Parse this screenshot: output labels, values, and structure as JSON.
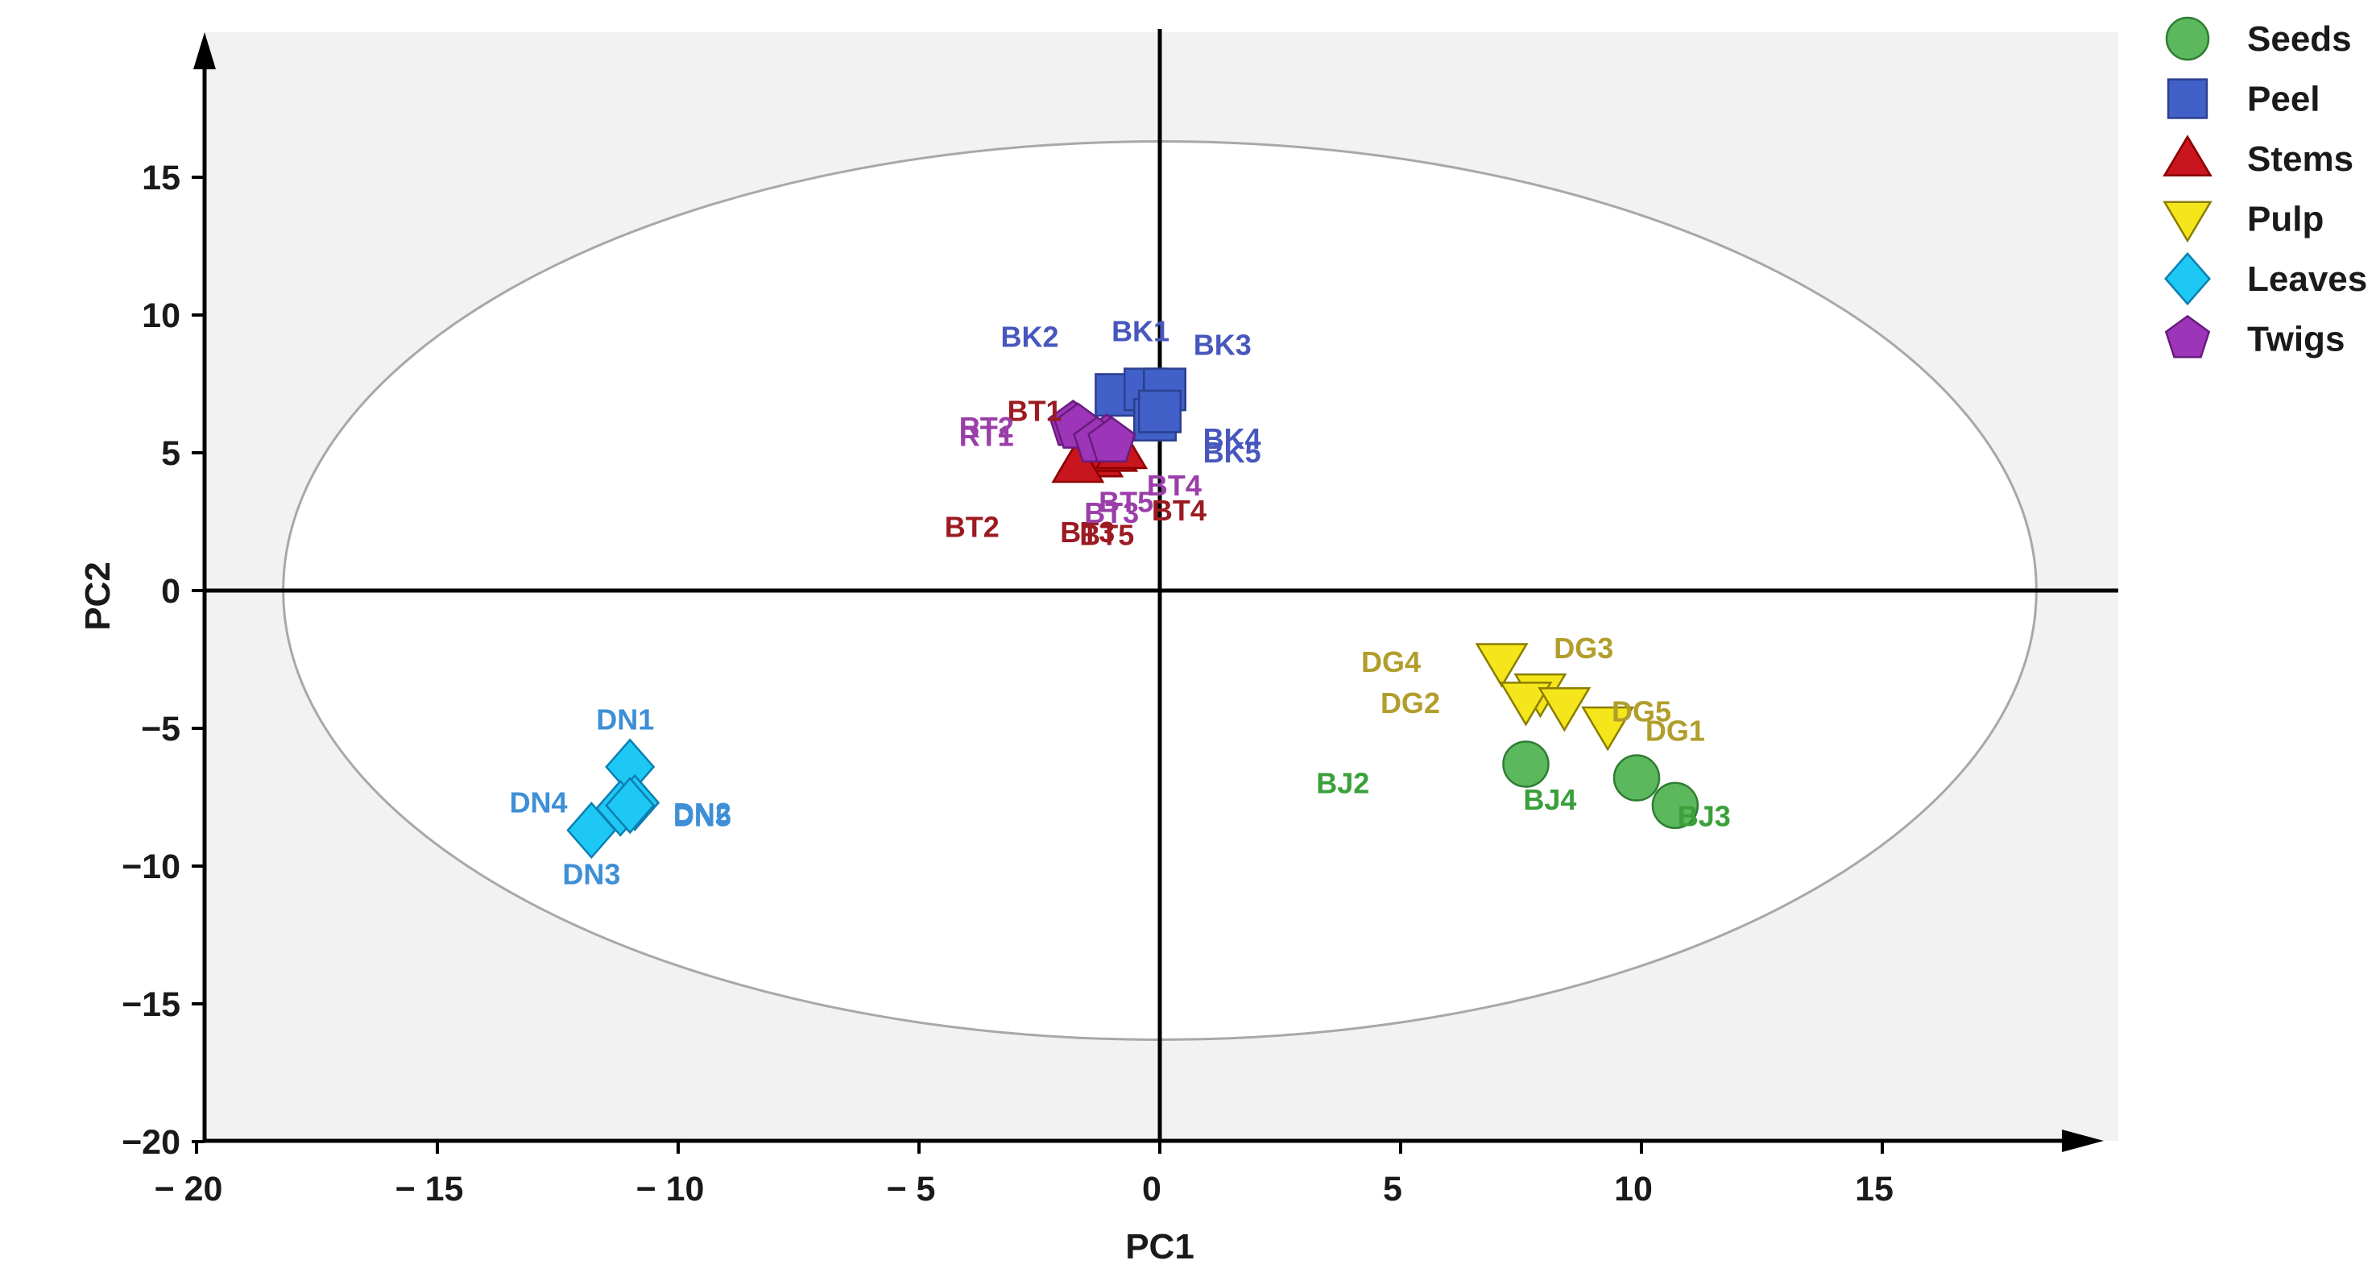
{
  "chart_data": {
    "type": "scatter",
    "title": "",
    "xlabel": "PC1",
    "ylabel": "PC2",
    "xlim": [
      -20,
      20
    ],
    "ylim": [
      -20,
      20
    ],
    "xticks": [
      -20,
      -15,
      -10,
      -5,
      0,
      5,
      10,
      15
    ],
    "yticks": [
      -20,
      -15,
      -10,
      -5,
      0,
      5,
      10,
      15
    ],
    "xtick_labels": [
      "− 20",
      "− 15",
      "− 10",
      "− 5",
      "0",
      "5",
      "10",
      "15"
    ],
    "ytick_labels": [
      "−20",
      "−15",
      "−10",
      "−5",
      "0",
      "5",
      "10",
      "15"
    ],
    "ellipse": {
      "cx": 0,
      "cy": 0,
      "rx": 18.2,
      "ry": 16.3
    },
    "legend_position": "top-right",
    "series": [
      {
        "name": "Seeds",
        "marker": "circle",
        "fill": "#5cb85c",
        "stroke": "#2e7d32",
        "label_color": "#3aa03a",
        "points": [
          {
            "label": "BJ2",
            "x": 7.6,
            "y": -6.3,
            "label_dx": -3.8,
            "label_dy": -0.7
          },
          {
            "label": "BJ4",
            "x": 9.9,
            "y": -6.8,
            "label_dx": -1.8,
            "label_dy": -0.8
          },
          {
            "label": "BJ3",
            "x": 10.7,
            "y": -7.8,
            "label_dx": 0.6,
            "label_dy": -0.4
          }
        ]
      },
      {
        "name": "Peel",
        "marker": "square",
        "fill": "#4160c8",
        "stroke": "#2a3f8f",
        "label_color": "#4757bd",
        "points": [
          {
            "label": "BK2",
            "x": -0.9,
            "y": 7.1,
            "label_dx": -1.8,
            "label_dy": 2.1
          },
          {
            "label": "BK1",
            "x": -0.3,
            "y": 7.3,
            "label_dx": -0.1,
            "label_dy": 2.1
          },
          {
            "label": "BK3",
            "x": 0.1,
            "y": 7.3,
            "label_dx": 1.2,
            "label_dy": 1.6
          },
          {
            "label": "BK4",
            "x": -0.1,
            "y": 6.2,
            "label_dx": 1.6,
            "label_dy": -0.7
          },
          {
            "label": "BK5",
            "x": 0.0,
            "y": 6.5,
            "label_dx": 1.5,
            "label_dy": -1.5
          }
        ]
      },
      {
        "name": "Stems",
        "marker": "triangle",
        "fill": "#c8151e",
        "stroke": "#8b0000",
        "label_color": "#9c1b22",
        "points": [
          {
            "label": "BT1",
            "x": -1.6,
            "y": 4.9,
            "label_dx": -1.0,
            "label_dy": 1.6
          },
          {
            "label": "BT2",
            "x": -1.3,
            "y": 4.8,
            "label_dx": -2.6,
            "label_dy": -2.5
          },
          {
            "label": "BT3",
            "x": -1.0,
            "y": 5.0,
            "label_dx": -0.5,
            "label_dy": -2.9
          },
          {
            "label": "BT4",
            "x": -0.8,
            "y": 5.1,
            "label_dx": 1.2,
            "label_dy": -2.2
          },
          {
            "label": "BT5",
            "x": -1.7,
            "y": 4.6,
            "label_dx": 0.6,
            "label_dy": -2.6
          }
        ]
      },
      {
        "name": "Pulp",
        "marker": "triangle-down",
        "fill": "#f5e61b",
        "stroke": "#8a7d00",
        "label_color": "#b19e2c",
        "points": [
          {
            "label": "DG4",
            "x": 7.1,
            "y": -2.6,
            "label_dx": -2.3,
            "label_dy": 0.0
          },
          {
            "label": "DG3",
            "x": 7.9,
            "y": -3.7,
            "label_dx": 0.9,
            "label_dy": 1.6
          },
          {
            "label": "DG2",
            "x": 7.6,
            "y": -4.0,
            "label_dx": -2.4,
            "label_dy": -0.1
          },
          {
            "label": "DG5",
            "x": 8.4,
            "y": -4.2,
            "label_dx": 1.6,
            "label_dy": -0.2
          },
          {
            "label": "DG1",
            "x": 9.3,
            "y": -4.9,
            "label_dx": 1.4,
            "label_dy": -0.2
          }
        ]
      },
      {
        "name": "Leaves",
        "marker": "diamond",
        "fill": "#1ec8f5",
        "stroke": "#0b7fb0",
        "label_color": "#3d8fd6",
        "points": [
          {
            "label": "DN1",
            "x": -11.0,
            "y": -6.4,
            "label_dx": -0.1,
            "label_dy": 1.7
          },
          {
            "label": "DN4",
            "x": -11.2,
            "y": -7.9,
            "label_dx": -1.7,
            "label_dy": 0.2
          },
          {
            "label": "DN2",
            "x": -10.9,
            "y": -7.7,
            "label_dx": 1.4,
            "label_dy": -0.4
          },
          {
            "label": "DN5",
            "x": -11.0,
            "y": -7.8,
            "label_dx": 1.5,
            "label_dy": -0.4
          },
          {
            "label": "DN3",
            "x": -11.8,
            "y": -8.7,
            "label_dx": 0.0,
            "label_dy": -1.6
          }
        ]
      },
      {
        "name": "Twigs",
        "marker": "pentagon",
        "fill": "#9c35b8",
        "stroke": "#6a1b7e",
        "label_color": "#9a3fa8",
        "points": [
          {
            "label": "RT2",
            "x": -1.8,
            "y": 6.0,
            "label_dx": -1.8,
            "label_dy": -0.1
          },
          {
            "label": "RT1",
            "x": -1.7,
            "y": 5.9,
            "label_dx": -1.9,
            "label_dy": -0.3
          },
          {
            "label": "BT4",
            "x": -1.1,
            "y": 5.5,
            "label_dx": 1.4,
            "label_dy": -1.7
          },
          {
            "label": "BT5",
            "x": -1.3,
            "y": 5.4,
            "label_dx": 0.6,
            "label_dy": -2.2
          },
          {
            "label": "BT3",
            "x": -1.0,
            "y": 5.4,
            "label_dx": 0.0,
            "label_dy": -2.6
          }
        ]
      }
    ]
  }
}
